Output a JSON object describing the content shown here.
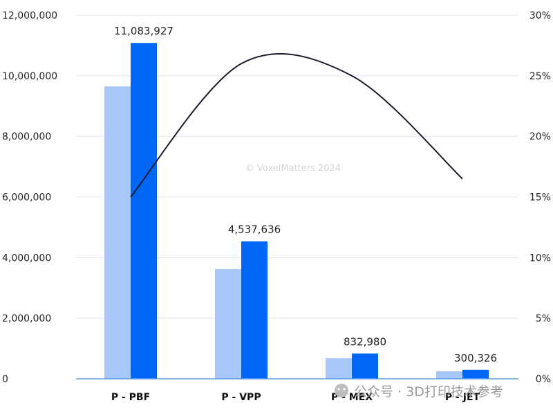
{
  "chart_data": {
    "type": "bar",
    "categories": [
      "P - PBF",
      "P - VPP",
      "P - MEX",
      "P - JET"
    ],
    "series": [
      {
        "values": [
          9650000,
          3620000,
          680000,
          250000
        ],
        "color": "#a8c8fa"
      },
      {
        "values": [
          11083927,
          4537636,
          832980,
          300326
        ],
        "color": "#0066f5"
      }
    ],
    "data_labels": [
      "11,083,927",
      "4,537,636",
      "832,980",
      "300,326"
    ],
    "line_series": {
      "values": [
        15,
        26,
        25,
        16.5
      ],
      "axis": "right",
      "color": "#1a1a2e"
    },
    "y_left": {
      "range": [
        0,
        12000000
      ],
      "ticks": [
        "0",
        "2,000,000",
        "4,000,000",
        "6,000,000",
        "8,000,000",
        "10,000,000",
        "12,000,000"
      ]
    },
    "y_right": {
      "range": [
        0,
        30
      ],
      "ticks": [
        "0%",
        "5%",
        "10%",
        "15%",
        "20%",
        "25%",
        "30%"
      ]
    },
    "grid": true,
    "gridline_color": "#d8e4f2",
    "axis_color": "#5a9be6"
  },
  "watermark": "© VoxelMatters 2024",
  "wechat_caption": "公众号 · 3D打印技术参考"
}
